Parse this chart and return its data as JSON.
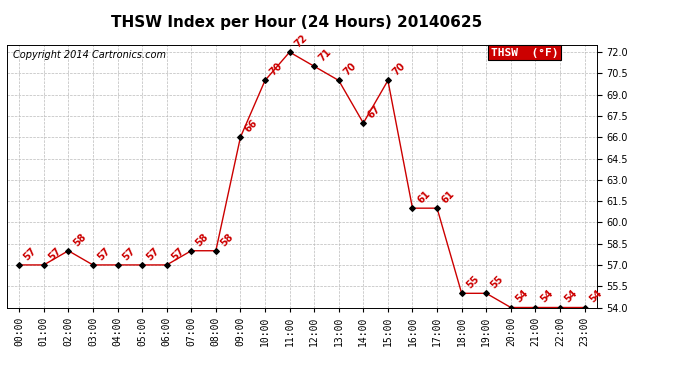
{
  "title": "THSW Index per Hour (24 Hours) 20140625",
  "copyright": "Copyright 2014 Cartronics.com",
  "legend_label": "THSW  (°F)",
  "hours": [
    0,
    1,
    2,
    3,
    4,
    5,
    6,
    7,
    8,
    9,
    10,
    11,
    12,
    13,
    14,
    15,
    16,
    17,
    18,
    19,
    20,
    21,
    22,
    23
  ],
  "values": [
    57,
    57,
    58,
    57,
    57,
    57,
    57,
    58,
    58,
    66,
    70,
    72,
    71,
    70,
    67,
    70,
    61,
    61,
    55,
    55,
    54,
    54,
    54,
    54
  ],
  "ylim_min": 54.0,
  "ylim_max": 72.5,
  "yticks": [
    54.0,
    55.5,
    57.0,
    58.5,
    60.0,
    61.5,
    63.0,
    64.5,
    66.0,
    67.5,
    69.0,
    70.5,
    72.0
  ],
  "line_color": "#cc0000",
  "marker_color": "#000000",
  "bg_color": "#ffffff",
  "grid_color": "#bbbbbb",
  "legend_bg": "#cc0000",
  "legend_text_color": "#ffffff",
  "title_fontsize": 11,
  "tick_fontsize": 7,
  "annotation_fontsize": 7,
  "copyright_fontsize": 7
}
